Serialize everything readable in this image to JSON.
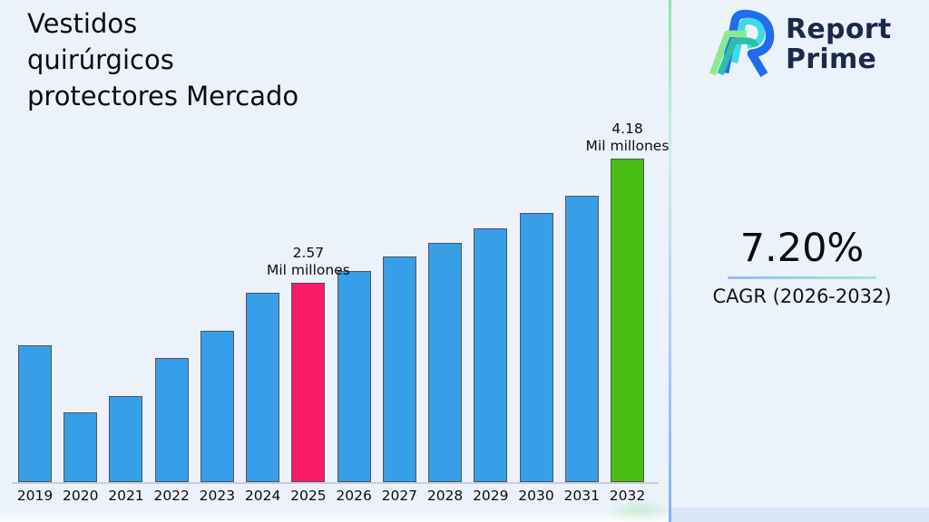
{
  "title": {
    "lines": [
      "Vestidos",
      "quirúrgicos",
      "protectores Mercado"
    ]
  },
  "logo": {
    "brand_line1": "Report",
    "brand_line2": "Prime",
    "text_color": "#1b2949",
    "mark_colors": {
      "blue": "#1f6cf1",
      "cyan": "#3fd9e8",
      "light_green": "#8bea90",
      "teal": "#2cbfa3"
    }
  },
  "stat": {
    "value": "7.20%",
    "caption": "CAGR (2026-2032)"
  },
  "chart_data": {
    "type": "bar",
    "title": "Vestidos quirúrgicos protectores Mercado",
    "unit": "Mil millones",
    "categories": [
      "2019",
      "2020",
      "2021",
      "2022",
      "2023",
      "2024",
      "2025",
      "2026",
      "2027",
      "2028",
      "2029",
      "2030",
      "2031",
      "2032"
    ],
    "values": [
      1.77,
      0.9,
      1.11,
      1.6,
      1.95,
      2.45,
      2.57,
      2.73,
      2.91,
      3.09,
      3.28,
      3.47,
      3.7,
      4.18
    ],
    "annotations": [
      {
        "category": "2025",
        "value_label": "2.57",
        "unit_label": "Mil millones"
      },
      {
        "category": "2032",
        "value_label": "4.18",
        "unit_label": "Mil millones"
      }
    ],
    "bar_color_default": "#369fe8",
    "highlight_colors": {
      "2025": "#fb1a66",
      "2032": "#49be12"
    },
    "bar_edge_color": "#53535f",
    "xlabel": "",
    "ylabel": "",
    "ylim": [
      0,
      4.7
    ],
    "y_axis_visible": false,
    "grid": false,
    "legend": "none"
  }
}
